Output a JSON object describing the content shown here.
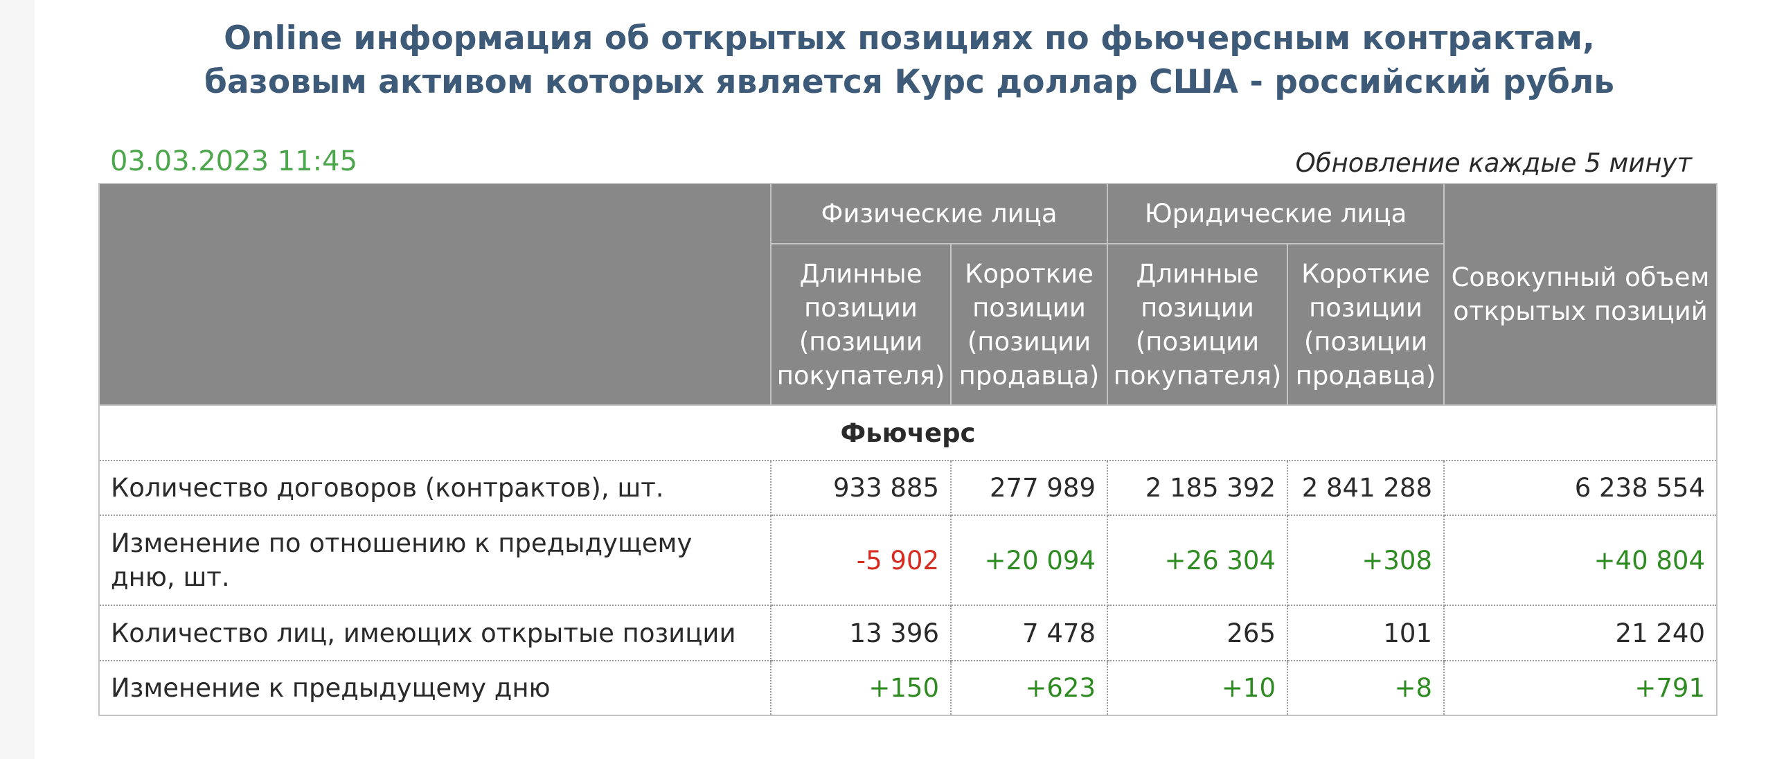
{
  "title": {
    "line1": "Online информация об открытых позициях по фьючерсным контрактам,",
    "line2": "базовым активом которых является Курс доллар США - российский рубль"
  },
  "timestamp": "03.03.2023 11:45",
  "update_note": "Обновление каждые 5 минут",
  "table": {
    "group_headers": {
      "individuals": "Физические лица",
      "legal_entities": "Юридические лица",
      "total": "Совокупный объем открытых позиций"
    },
    "sub_headers": {
      "long": "Длинные позиции (позиции покупателя)",
      "short": "Короткие позиции (позиции продавца)"
    },
    "section": "Фьючерс",
    "rows": [
      {
        "label": "Количество договоров (контрактов), шт.",
        "values": [
          "933 885",
          "277 989",
          "2 185 392",
          "2 841 288",
          "6 238 554"
        ]
      },
      {
        "label": "Изменение по отношению к предыдущему дню, шт.",
        "values": [
          "-5 902",
          "+20 094",
          "+26 304",
          "+308",
          "+40 804"
        ]
      },
      {
        "label": "Количество лиц, имеющих открытые позиции",
        "values": [
          "13 396",
          "7 478",
          "265",
          "101",
          "21 240"
        ]
      },
      {
        "label": "Изменение к предыдущему дню",
        "values": [
          "+150",
          "+623",
          "+10",
          "+8",
          "+791"
        ]
      }
    ]
  },
  "colors": {
    "title": "#3d5a78",
    "timestamp": "#4ca64c",
    "header_bg": "#888888",
    "positive": "#2e8b22",
    "negative": "#d62b1f"
  }
}
